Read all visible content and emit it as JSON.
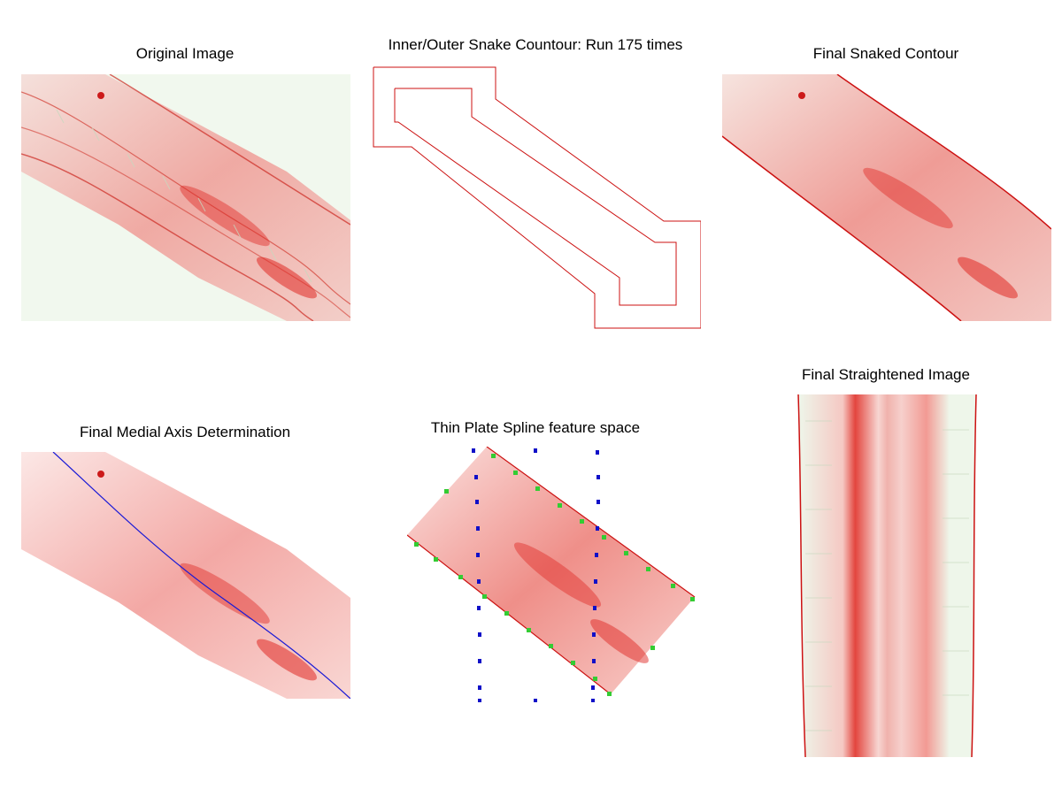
{
  "panels": {
    "original": {
      "title": "Original Image"
    },
    "snake": {
      "title": "Inner/Outer Snake Countour: Run 175 times"
    },
    "snaked": {
      "title": "Final Snaked Contour"
    },
    "medial": {
      "title": "Final Medial Axis Determination"
    },
    "tps": {
      "title": "Thin Plate Spline feature space"
    },
    "straightened": {
      "title": "Final Straightened Image"
    }
  },
  "colors": {
    "contour": "#cc1111",
    "medial_axis": "#1a1ad6",
    "grid_points": "#1010c8",
    "control_points": "#33cc33",
    "tissue_green": "#eaf3e6",
    "tissue_red": "#e82020"
  }
}
